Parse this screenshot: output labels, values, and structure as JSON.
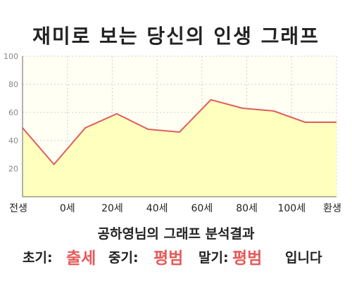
{
  "title": "재미로 보는 당신의 인생 그래프",
  "chart_data": {
    "type": "area",
    "x_labels": [
      "전생",
      "0세",
      "20세",
      "40세",
      "60세",
      "80세",
      "100세",
      "환생"
    ],
    "y_ticks": [
      20,
      40,
      60,
      80,
      100
    ],
    "ylim": [
      0,
      100
    ],
    "values": [
      49,
      23,
      49,
      59,
      48,
      46,
      69,
      63,
      61,
      53,
      53
    ],
    "grid": true,
    "colors": {
      "line": "#e05d5d",
      "fill": "#ffffbe",
      "bg": "#fffff4"
    }
  },
  "summary": "공하영님의 그래프 분석결과",
  "result": {
    "early_label": "초기:",
    "early_value": "출세",
    "mid_label": "중기:",
    "mid_value": "평범",
    "late_label": "말기:",
    "late_value": "평범",
    "suffix": "입니다"
  }
}
